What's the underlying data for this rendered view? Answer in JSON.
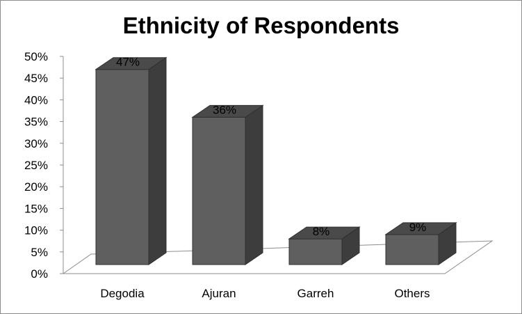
{
  "chart_data": {
    "type": "bar",
    "title": "Ethnicity of Respondents",
    "categories": [
      "Degodia",
      "Ajuran",
      "Garreh",
      "Others"
    ],
    "values": [
      47,
      36,
      8,
      9
    ],
    "data_labels": [
      "47%",
      "36%",
      "8%",
      "9%"
    ],
    "ylim": [
      0,
      50
    ],
    "yticks": [
      0,
      5,
      10,
      15,
      20,
      25,
      30,
      35,
      40,
      45,
      50
    ],
    "ytick_labels": [
      "0%",
      "5%",
      "10%",
      "15%",
      "20%",
      "25%",
      "30%",
      "35%",
      "40%",
      "45%",
      "50%"
    ],
    "xlabel": "",
    "ylabel": "",
    "grid": false,
    "legend": "none",
    "style": "3d-column",
    "colors": {
      "bar_front": "#5f5f5f",
      "bar_side": "#3d3d3d",
      "bar_top": "#4a4a4a",
      "floor": "#ffffff",
      "axis": "#8c8c8c"
    }
  }
}
